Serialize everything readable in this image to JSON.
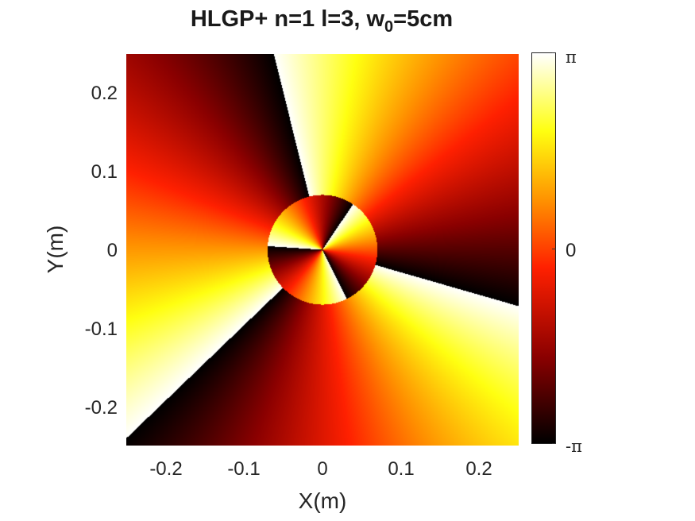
{
  "chart_data": {
    "type": "heatmap",
    "title_main": "HLGP+ n=1 l=3, w",
    "title_sub": "0",
    "title_tail": "=5cm",
    "xlabel": "X(m)",
    "ylabel": "Y(m)",
    "xlim": [
      -0.25,
      0.25
    ],
    "ylim": [
      -0.25,
      0.25
    ],
    "xticks": [
      "-0.2",
      "-0.1",
      "0",
      "0.1",
      "0.2"
    ],
    "yticks": [
      "0.2",
      "0.1",
      "0",
      "-0.1",
      "-0.2"
    ],
    "xtick_values": [
      -0.2,
      -0.1,
      0,
      0.1,
      0.2
    ],
    "ytick_values": [
      0.2,
      0.1,
      0,
      -0.1,
      -0.2
    ],
    "colormap": "hot",
    "colorbar": {
      "labels": [
        "π",
        "0",
        "-π"
      ],
      "values": [
        3.1416,
        0,
        -3.1416
      ]
    },
    "phase_field": {
      "quantity": "phase",
      "azimuthal_index_l": 3,
      "radial_index_n": 1,
      "inner_disk_radius_m": 0.07,
      "outer_phase_offset_rad": -2.3,
      "inner_phase_offset_rad": 0.2
    }
  }
}
